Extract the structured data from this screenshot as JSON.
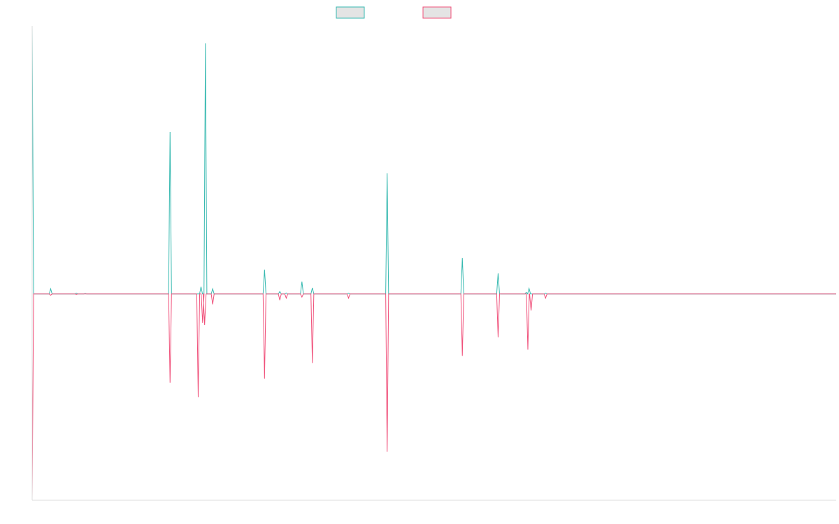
{
  "chart_data": {
    "type": "line",
    "title": "",
    "xlabel": "",
    "ylabel": "",
    "legend_position": "top-center",
    "grid": false,
    "xlim": [
      0,
      1000
    ],
    "ylim": [
      -1,
      1.3
    ],
    "series": [
      {
        "color": "#36b9b0",
        "fill": "#e4e4e4",
        "peaks": [
          {
            "x": 0,
            "y": 1.3
          },
          {
            "x": 23,
            "y": 0.025
          },
          {
            "x": 55,
            "y": 0.004
          },
          {
            "x": 66,
            "y": 0.002
          },
          {
            "x": 171.5,
            "y": 0.785
          },
          {
            "x": 210,
            "y": 0.035
          },
          {
            "x": 215.5,
            "y": 1.215
          },
          {
            "x": 224.5,
            "y": 0.025
          },
          {
            "x": 289,
            "y": 0.118
          },
          {
            "x": 308,
            "y": 0.012
          },
          {
            "x": 316,
            "y": 0.005
          },
          {
            "x": 335.5,
            "y": 0.06
          },
          {
            "x": 348.5,
            "y": 0.03
          },
          {
            "x": 393.5,
            "y": 0.004
          },
          {
            "x": 441.5,
            "y": 0.585
          },
          {
            "x": 535,
            "y": 0.175
          },
          {
            "x": 579.5,
            "y": 0.1
          },
          {
            "x": 614.5,
            "y": 0.008
          },
          {
            "x": 618,
            "y": 0.027
          },
          {
            "x": 638.5,
            "y": 0.004
          }
        ]
      },
      {
        "color": "#f0507a",
        "fill": "#e4e4e4",
        "peaks": [
          {
            "x": 0,
            "y": -0.99
          },
          {
            "x": 23,
            "y": -0.006
          },
          {
            "x": 55,
            "y": -0.002
          },
          {
            "x": 171.5,
            "y": -0.43
          },
          {
            "x": 206.5,
            "y": -0.5
          },
          {
            "x": 212,
            "y": -0.14
          },
          {
            "x": 214.5,
            "y": -0.15
          },
          {
            "x": 224.5,
            "y": -0.05
          },
          {
            "x": 289,
            "y": -0.41
          },
          {
            "x": 308,
            "y": -0.03
          },
          {
            "x": 316,
            "y": -0.02
          },
          {
            "x": 335.5,
            "y": -0.015
          },
          {
            "x": 348.5,
            "y": -0.335
          },
          {
            "x": 393.5,
            "y": -0.02
          },
          {
            "x": 441.5,
            "y": -0.765
          },
          {
            "x": 535,
            "y": -0.3
          },
          {
            "x": 579.5,
            "y": -0.21
          },
          {
            "x": 616.5,
            "y": -0.27
          },
          {
            "x": 620.5,
            "y": -0.08
          },
          {
            "x": 638.5,
            "y": -0.02
          }
        ]
      }
    ]
  }
}
